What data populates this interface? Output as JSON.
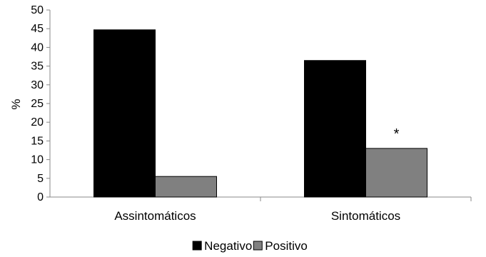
{
  "chart_data": {
    "type": "bar",
    "categories": [
      "Assintomáticos",
      "Sintomáticos"
    ],
    "series": [
      {
        "name": "Negativo",
        "values": [
          44.7,
          36.5
        ],
        "color": "#000000"
      },
      {
        "name": "Positivo",
        "values": [
          5.5,
          13.0
        ],
        "color": "#808080"
      }
    ],
    "ylabel": "%",
    "xlabel": "",
    "ylim": [
      0,
      50
    ],
    "yticks": [
      0,
      5,
      10,
      15,
      20,
      25,
      30,
      35,
      40,
      45,
      50
    ],
    "grid": false,
    "legend": "bottom",
    "annotations": [
      {
        "text": "*",
        "category": "Sintomáticos",
        "series": "Positivo"
      }
    ]
  }
}
